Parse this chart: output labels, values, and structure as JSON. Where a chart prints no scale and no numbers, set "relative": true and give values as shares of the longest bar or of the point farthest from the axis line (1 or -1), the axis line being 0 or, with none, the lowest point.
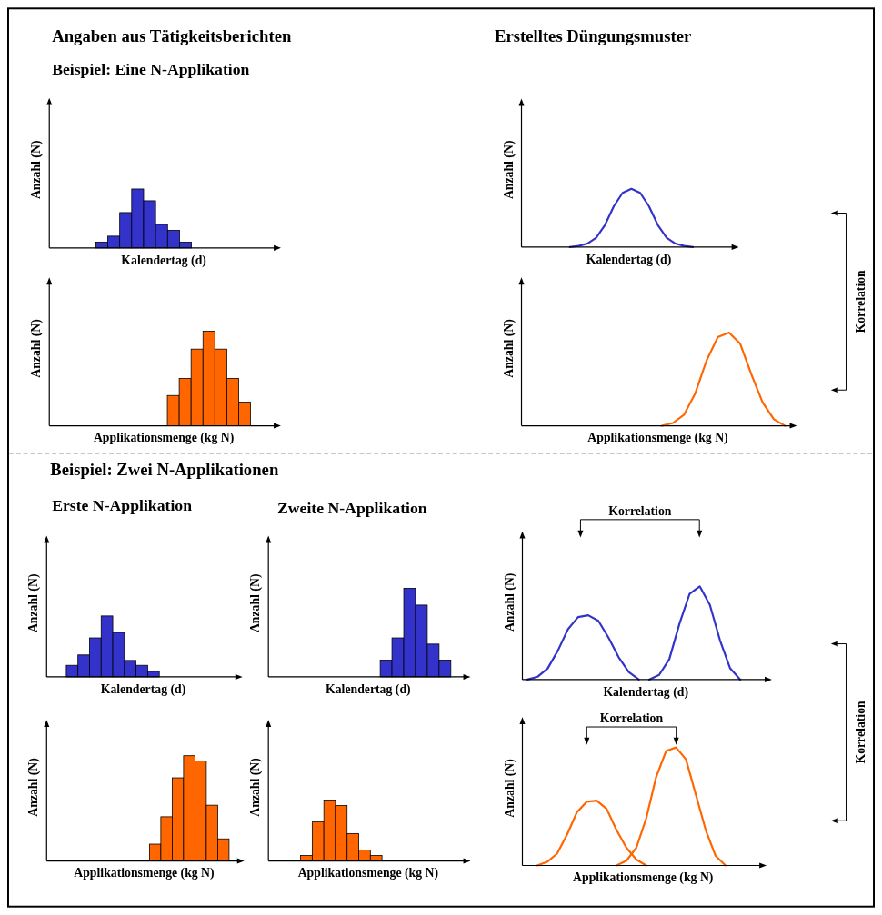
{
  "chart_data": [
    {
      "type": "bar",
      "relative": true,
      "title": "Angaben aus Tätigkeitsberichten",
      "subtitle": "Beispiel: Eine N-Applikation",
      "xlabel": "Kalendertag (d)",
      "ylabel": "Anzahl (N)",
      "color": "#3333cc",
      "categories": [
        null,
        null,
        null,
        null,
        null,
        null,
        null,
        null
      ],
      "values": [
        0.1,
        0.2,
        0.6,
        1,
        0.8,
        0.4,
        0.3,
        0.1
      ]
    },
    {
      "type": "bar",
      "relative": true,
      "xlabel": "Applikationsmenge (kg N)",
      "ylabel": "Anzahl (N)",
      "color": "#ff6600",
      "categories": [
        null,
        null,
        null,
        null,
        null,
        null,
        null
      ],
      "values": [
        0.32,
        0.5,
        0.81,
        1,
        0.81,
        0.5,
        0.25
      ]
    },
    {
      "type": "line",
      "relative": true,
      "title": "Erstelltes Düngungsmuster",
      "xlabel": "Kalendertag (d)",
      "ylabel": "Anzahl (N)",
      "categories": [
        null,
        null,
        null,
        null,
        null,
        null,
        null,
        null,
        null,
        null,
        null,
        null,
        null,
        null,
        null,
        null,
        null,
        null,
        null,
        null,
        null,
        null,
        null,
        null
      ],
      "series": [
        {
          "color": "#3333cc",
          "values": [
            null,
            null,
            null,
            null,
            null,
            0,
            0.02,
            0.06,
            0.16,
            0.38,
            0.7,
            0.93,
            1,
            0.93,
            0.7,
            0.38,
            0.16,
            0.06,
            0.02,
            0,
            null,
            null,
            null,
            null
          ]
        }
      ]
    },
    {
      "type": "line",
      "relative": true,
      "xlabel": "Applikationsmenge (kg N)",
      "ylabel": "Anzahl (N)",
      "annotations": [
        "Korrelation"
      ],
      "categories": [
        null,
        null,
        null,
        null,
        null,
        null,
        null,
        null,
        null,
        null,
        null,
        null,
        null,
        null,
        null,
        null,
        null,
        null,
        null,
        null,
        null,
        null,
        null,
        null
      ],
      "series": [
        {
          "color": "#ff6600",
          "values": [
            null,
            null,
            null,
            null,
            null,
            null,
            null,
            null,
            null,
            null,
            null,
            null,
            0,
            0.03,
            0.12,
            0.35,
            0.7,
            0.95,
            1,
            0.88,
            0.55,
            0.25,
            0.07,
            0
          ]
        }
      ]
    },
    {
      "type": "bar",
      "relative": true,
      "title": "Beispiel: Zwei N-Applikationen",
      "subtitle": "Erste N-Applikation",
      "xlabel": "Kalendertag (d)",
      "ylabel": "Anzahl (N)",
      "color": "#3333cc",
      "categories": [
        null,
        null,
        null,
        null,
        null,
        null,
        null,
        null
      ],
      "values": [
        0.19,
        0.36,
        0.64,
        1,
        0.73,
        0.27,
        0.19,
        0.09
      ]
    },
    {
      "type": "bar",
      "relative": true,
      "subtitle": "Zweite N-Applikation",
      "xlabel": "Kalendertag (d)",
      "ylabel": "Anzahl (N)",
      "color": "#3333cc",
      "categories": [
        null,
        null,
        null,
        null,
        null,
        null
      ],
      "values": [
        0.19,
        0.44,
        1,
        0.81,
        0.37,
        0.19
      ]
    },
    {
      "type": "bar",
      "relative": true,
      "xlabel": "Applikationsmenge (kg N)",
      "ylabel": "Anzahl (N)",
      "color": "#ff6600",
      "categories": [
        null,
        null,
        null,
        null,
        null,
        null,
        null
      ],
      "values": [
        0.16,
        0.42,
        0.79,
        1,
        0.95,
        0.53,
        0.21
      ]
    },
    {
      "type": "bar",
      "relative": true,
      "xlabel": "Applikationsmenge (kg N)",
      "ylabel": "Anzahl (N)",
      "color": "#ff6600",
      "categories": [
        null,
        null,
        null,
        null,
        null,
        null,
        null
      ],
      "values": [
        0.09,
        0.64,
        1,
        0.91,
        0.45,
        0.18,
        0.09
      ]
    },
    {
      "type": "line",
      "relative": true,
      "xlabel": "Kalendertag (d)",
      "ylabel": "Anzahl (N)",
      "annotations": [
        "Korrelation"
      ],
      "categories": [
        null,
        null,
        null,
        null,
        null,
        null,
        null,
        null,
        null,
        null,
        null,
        null,
        null,
        null,
        null,
        null,
        null,
        null,
        null,
        null,
        null,
        null,
        null,
        null
      ],
      "series": [
        {
          "color": "#3333cc",
          "values": [
            0,
            0.03,
            0.12,
            0.31,
            0.54,
            0.67,
            0.69,
            0.63,
            0.45,
            0.24,
            0.08,
            0,
            null,
            null,
            null,
            null,
            null,
            null,
            null,
            null,
            null,
            null,
            null,
            null
          ]
        },
        {
          "color": "#3333cc",
          "values": [
            null,
            null,
            null,
            null,
            null,
            null,
            null,
            null,
            null,
            null,
            null,
            null,
            0,
            0.05,
            0.22,
            0.6,
            0.92,
            1,
            0.8,
            0.42,
            0.12,
            0,
            null,
            null
          ]
        }
      ]
    },
    {
      "type": "line",
      "relative": true,
      "xlabel": "Applikationsmenge (kg N)",
      "ylabel": "Anzahl (N)",
      "annotations": [
        "Korrelation",
        "Korrelation"
      ],
      "categories": [
        null,
        null,
        null,
        null,
        null,
        null,
        null,
        null,
        null,
        null,
        null,
        null,
        null,
        null,
        null,
        null,
        null,
        null,
        null,
        null,
        null,
        null,
        null,
        null
      ],
      "series": [
        {
          "color": "#ff6600",
          "values": [
            null,
            0,
            0.03,
            0.1,
            0.26,
            0.45,
            0.54,
            0.55,
            0.48,
            0.3,
            0.15,
            0.05,
            0,
            null,
            null,
            null,
            null,
            null,
            null,
            null,
            null,
            null,
            null,
            null
          ]
        },
        {
          "color": "#ff6600",
          "values": [
            null,
            null,
            null,
            null,
            null,
            null,
            null,
            null,
            null,
            0,
            0.04,
            0.15,
            0.4,
            0.75,
            0.97,
            1,
            0.9,
            0.6,
            0.3,
            0.08,
            0,
            null,
            null,
            null
          ]
        }
      ]
    }
  ]
}
